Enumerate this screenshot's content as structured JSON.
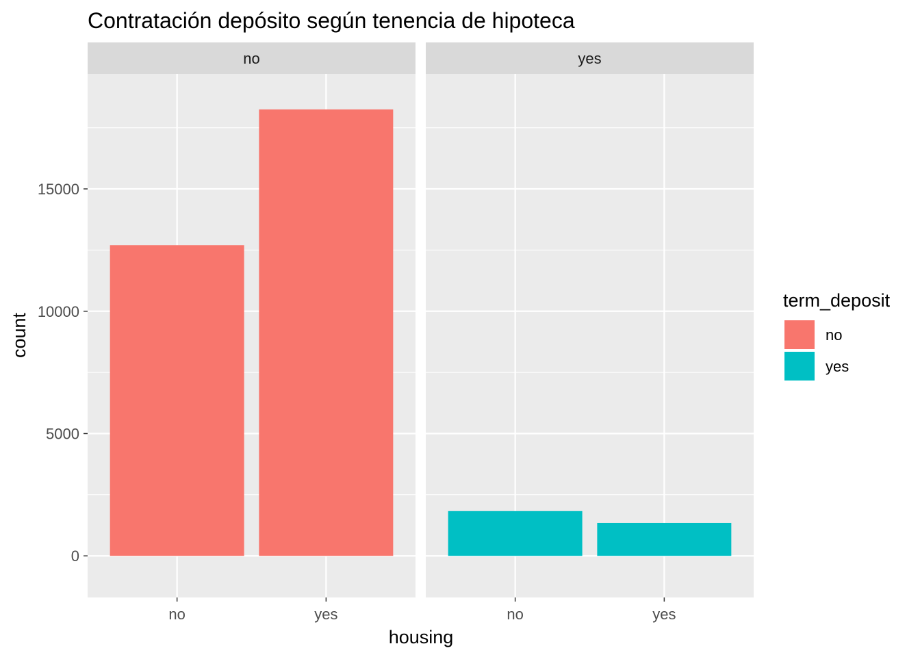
{
  "chart_data": {
    "type": "bar",
    "title": "Contratación depósito según tenencia de hipoteca",
    "xlabel": "housing",
    "ylabel": "count",
    "ylim": [
      -1700,
      19700
    ],
    "y_ticks": [
      0,
      5000,
      10000,
      15000
    ],
    "y_tick_labels": [
      "0",
      "5000",
      "10000",
      "15000"
    ],
    "facet_variable": "term_deposit",
    "facets": [
      {
        "label": "no",
        "categories": [
          "no",
          "yes"
        ],
        "values": [
          12700,
          18250
        ],
        "fill": "term_deposit: no"
      },
      {
        "label": "yes",
        "categories": [
          "no",
          "yes"
        ],
        "values": [
          1830,
          1350
        ],
        "fill": "term_deposit: yes"
      }
    ],
    "legend": {
      "title": "term_deposit",
      "position": "right",
      "entries": [
        {
          "label": "no",
          "color": "#F8766D"
        },
        {
          "label": "yes",
          "color": "#00BFC4"
        }
      ]
    },
    "grid": true,
    "colors": {
      "panel_bg": "#EBEBEB",
      "strip_bg": "#D9D9D9",
      "grid_major": "#FFFFFF",
      "tick_text": "#4D4D4D",
      "series_no": "#F8766D",
      "series_yes": "#00BFC4"
    }
  }
}
